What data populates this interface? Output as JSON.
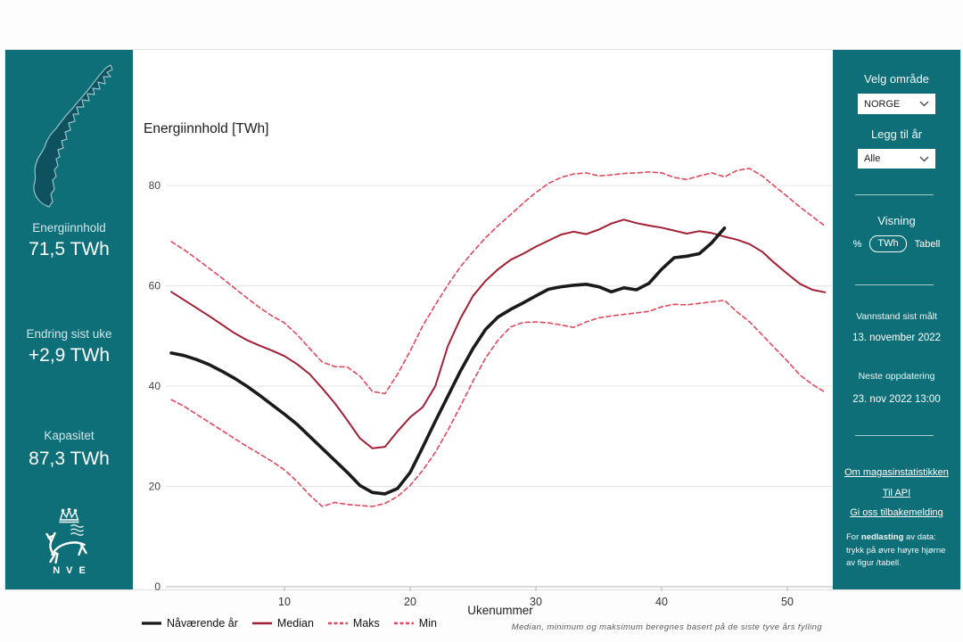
{
  "left_sidebar": {
    "stats": [
      {
        "label": "Energiinnhold",
        "value": "71,5 TWh"
      },
      {
        "label": "Endring sist uke",
        "value": "+2,9 TWh"
      },
      {
        "label": "Kapasitet",
        "value": "87,3 TWh"
      }
    ],
    "logo_text": "NVE"
  },
  "right_sidebar": {
    "select_area_label": "Velg område",
    "area_value": "NORGE",
    "add_year_label": "Legg til år",
    "year_value": "Alle",
    "view_label": "Visning",
    "view_options": {
      "percent": "%",
      "twh": "TWh",
      "table": "Tabell"
    },
    "measured_label": "Vannstand sist målt",
    "measured_value": "13. november 2022",
    "next_update_label": "Neste oppdatering",
    "next_update_value": "23. nov 2022 13:00",
    "links": [
      "Om magasinstatistikken",
      "Til API",
      "Gi oss tilbakemelding"
    ],
    "download_note_prefix": "For ",
    "download_note_bold": "nedlasting",
    "download_note_rest": " av data: trykk på øvre høyre hjørne av figur /tabell."
  },
  "chart": {
    "title": "Energiinnhold [TWh]",
    "xlabel": "Ukenummer",
    "footnote": "Median, minimum og maksimum beregnes basert på de siste tyve års fylling"
  },
  "chart_data": {
    "type": "line",
    "title": "Energiinnhold [TWh]",
    "xlabel": "Ukenummer",
    "x_unit": "week_number",
    "x_start": 1,
    "xticks": [
      10,
      20,
      30,
      40,
      50
    ],
    "yticks": [
      0,
      20,
      40,
      60,
      80
    ],
    "ylim": [
      0,
      88
    ],
    "grid": "horizontal",
    "legend_position": "bottom-left",
    "series": [
      {
        "name": "Nåværende år",
        "color": "#1a1a1a",
        "style": "solid",
        "width": 3.6,
        "values": [
          46.6,
          46.1,
          45.3,
          44.3,
          43.0,
          41.6,
          40.0,
          38.2,
          36.3,
          34.4,
          32.4,
          30.0,
          27.6,
          25.2,
          22.8,
          20.2,
          18.8,
          18.5,
          19.6,
          22.8,
          27.8,
          33.0,
          38.0,
          43.0,
          47.5,
          51.3,
          53.8,
          55.3,
          56.6,
          58.0,
          59.3,
          59.8,
          60.1,
          60.3,
          59.8,
          58.8,
          59.6,
          59.2,
          60.5,
          63.3,
          65.6,
          65.9,
          66.4,
          68.6,
          71.5
        ]
      },
      {
        "name": "Median",
        "color": "#a21f34",
        "style": "solid",
        "width": 2,
        "values": [
          58.8,
          57.2,
          55.6,
          54.0,
          52.3,
          50.6,
          49.2,
          48.1,
          47.1,
          46.0,
          44.4,
          42.4,
          39.6,
          36.6,
          33.2,
          29.6,
          27.6,
          27.9,
          31.0,
          33.8,
          35.8,
          40.0,
          48.0,
          53.5,
          58.0,
          61.0,
          63.3,
          65.2,
          66.4,
          67.8,
          69.0,
          70.2,
          70.8,
          70.3,
          71.2,
          72.4,
          73.2,
          72.5,
          72.0,
          71.6,
          71.0,
          70.4,
          70.9,
          70.5,
          69.8,
          69.2,
          68.3,
          66.8,
          64.5,
          62.4,
          60.4,
          59.2,
          58.7
        ]
      },
      {
        "name": "Maks",
        "color": "#e2475c",
        "style": "dashed",
        "width": 1.6,
        "values": [
          68.8,
          67.2,
          65.4,
          63.5,
          61.6,
          59.6,
          57.6,
          55.7,
          54.0,
          52.6,
          50.3,
          47.5,
          44.8,
          43.9,
          43.8,
          42.0,
          38.9,
          38.5,
          42.4,
          47.0,
          52.0,
          56.2,
          60.2,
          63.8,
          66.8,
          69.6,
          72.0,
          74.2,
          76.5,
          78.6,
          80.4,
          81.6,
          82.3,
          82.5,
          81.9,
          82.1,
          82.4,
          82.5,
          82.7,
          82.5,
          81.6,
          81.2,
          81.9,
          82.5,
          81.7,
          83.0,
          83.4,
          81.9,
          79.8,
          77.8,
          75.7,
          73.8,
          71.9
        ]
      },
      {
        "name": "Min",
        "color": "#e2475c",
        "style": "dashed",
        "width": 1.6,
        "values": [
          37.3,
          36.0,
          34.4,
          32.8,
          31.2,
          29.6,
          28.0,
          26.5,
          25.0,
          23.3,
          21.0,
          18.3,
          16.0,
          16.8,
          16.4,
          16.2,
          16.0,
          16.6,
          18.0,
          20.2,
          23.2,
          26.8,
          31.2,
          36.0,
          41.0,
          45.6,
          49.2,
          51.8,
          52.7,
          52.8,
          52.6,
          52.2,
          51.7,
          52.8,
          53.6,
          54.0,
          54.3,
          54.6,
          54.9,
          55.8,
          56.3,
          56.2,
          56.5,
          56.8,
          57.1,
          54.8,
          52.8,
          50.2,
          47.6,
          45.0,
          42.2,
          40.3,
          38.8
        ]
      }
    ]
  }
}
